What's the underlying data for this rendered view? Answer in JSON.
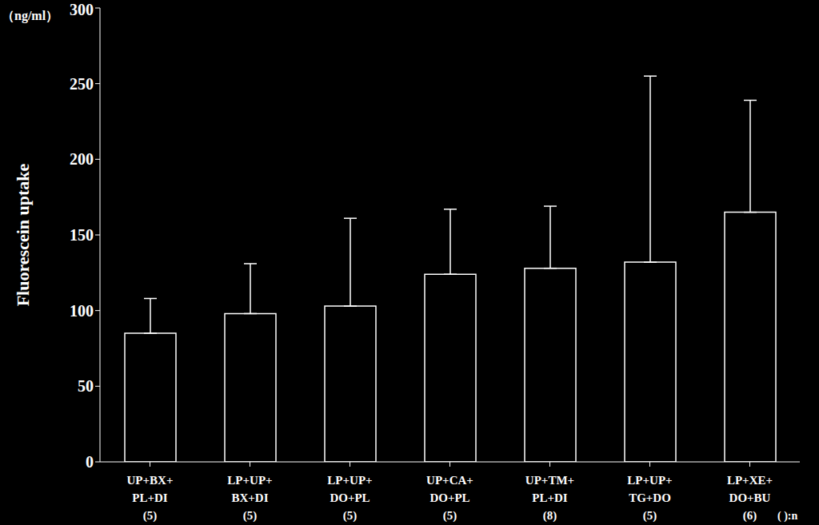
{
  "chart_data": {
    "type": "bar",
    "y_label": "Fluorescein uptake",
    "unit_label": "（ng/ml）",
    "categories": [
      "UP+BX+\nPL+DI",
      "LP+UP+\nBX+DI",
      "LP+UP+\nDO+PL",
      "UP+CA+\nDO+PL",
      "UP+TM+\nPL+DI",
      "LP+UP+\nTG+DO",
      "LP+XE+\nDO+BU"
    ],
    "n_labels": [
      "(5)",
      "(5)",
      "(5)",
      "(5)",
      "(8)",
      "(5)",
      "(6)"
    ],
    "n_note": "(  ):n",
    "values": [
      85,
      98,
      103,
      124,
      128,
      132,
      165
    ],
    "error_upper": [
      23,
      33,
      58,
      43,
      41,
      123,
      74
    ],
    "color": "#ffffff",
    "ylim": [
      0,
      300
    ],
    "yticks": [
      0,
      50,
      100,
      150,
      200,
      250,
      300
    ],
    "grid": false
  }
}
